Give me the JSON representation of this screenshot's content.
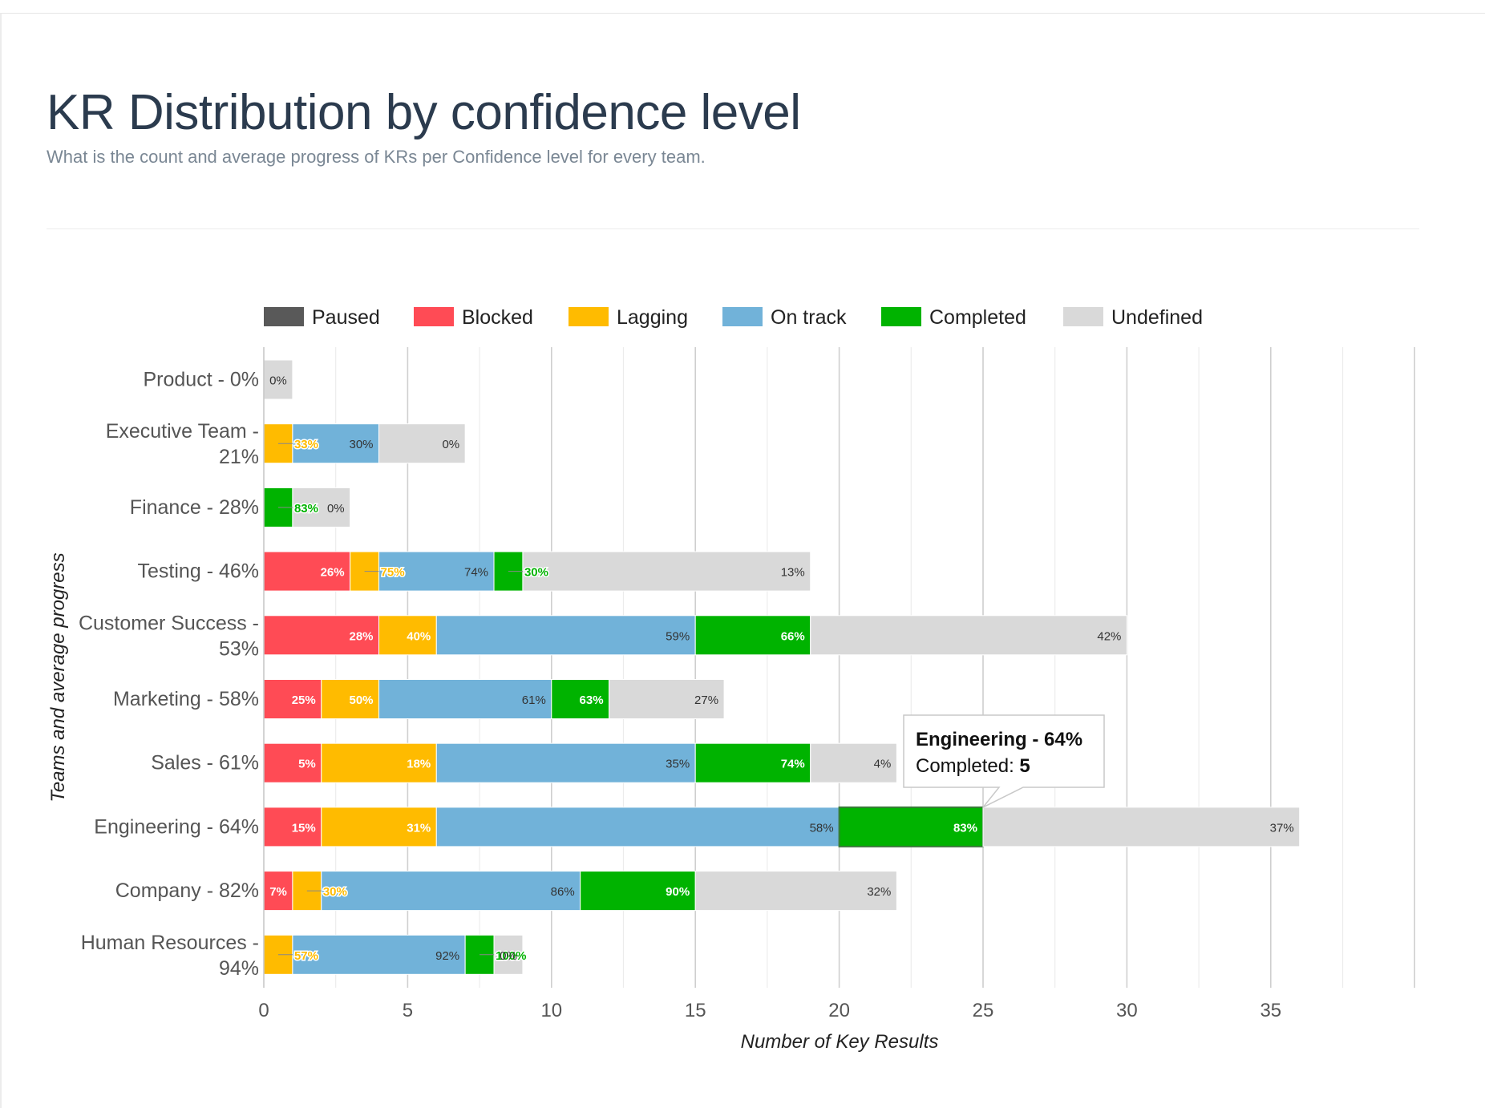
{
  "header": {
    "title": "KR Distribution by confidence level",
    "subtitle": "What is the count and average progress of KRs per Confidence level for every team."
  },
  "chart_data": {
    "type": "bar",
    "orientation": "horizontal",
    "stacked": true,
    "title": "",
    "xlabel": "Number of Key Results",
    "ylabel": "Teams and average progress",
    "xlim": [
      0,
      40
    ],
    "xticks": [
      0,
      5,
      10,
      15,
      20,
      25,
      30,
      35
    ],
    "grid": true,
    "legend_position": "top",
    "categories": [
      [
        "Product - 0%"
      ],
      [
        "Executive Team -",
        "21%"
      ],
      [
        "Finance - 28%"
      ],
      [
        "Testing - 46%"
      ],
      [
        "Customer Success -",
        "53%"
      ],
      [
        "Marketing - 58%"
      ],
      [
        "Sales - 61%"
      ],
      [
        "Engineering - 64%"
      ],
      [
        "Company - 82%"
      ],
      [
        "Human Resources -",
        "94%"
      ]
    ],
    "series": [
      {
        "name": "Paused",
        "color": "#595959",
        "values": [
          0,
          0,
          0,
          0,
          0,
          0,
          0,
          0,
          0,
          0
        ],
        "labels": [
          "",
          "",
          "",
          "",
          "",
          "",
          "",
          "",
          "",
          ""
        ]
      },
      {
        "name": "Blocked",
        "color": "#ff4b55",
        "values": [
          0,
          0,
          0,
          3,
          4,
          2,
          2,
          2,
          1,
          0
        ],
        "labels": [
          "",
          "",
          "",
          "26%",
          "28%",
          "25%",
          "5%",
          "15%",
          "7%",
          ""
        ]
      },
      {
        "name": "Lagging",
        "color": "#ffbb00",
        "values": [
          0,
          1,
          0,
          1,
          2,
          2,
          4,
          4,
          1,
          1
        ],
        "labels": [
          "",
          "33%",
          "",
          "75%",
          "40%",
          "50%",
          "18%",
          "31%",
          "30%",
          "57%"
        ]
      },
      {
        "name": "On track",
        "color": "#71b2d9",
        "values": [
          0,
          3,
          0,
          4,
          9,
          6,
          9,
          14,
          9,
          6
        ],
        "labels": [
          "",
          "30%",
          "",
          "74%",
          "59%",
          "61%",
          "35%",
          "58%",
          "86%",
          "92%"
        ]
      },
      {
        "name": "Completed",
        "color": "#00b300",
        "values": [
          0,
          0,
          1,
          1,
          4,
          2,
          4,
          5,
          4,
          1
        ],
        "labels": [
          "",
          "",
          "83%",
          "30%",
          "66%",
          "63%",
          "74%",
          "83%",
          "90%",
          "100%"
        ]
      },
      {
        "name": "Undefined",
        "color": "#d9d9d9",
        "values": [
          1,
          3,
          2,
          10,
          11,
          4,
          3,
          11,
          7,
          1
        ],
        "labels": [
          "0%",
          "0%",
          "0%",
          "13%",
          "42%",
          "27%",
          "4%",
          "37%",
          "32%",
          "0%"
        ]
      }
    ],
    "tooltip": {
      "category_index": 7,
      "series_index": 4,
      "title": "Engineering - 64%",
      "label": "Completed: ",
      "value": "5"
    }
  }
}
